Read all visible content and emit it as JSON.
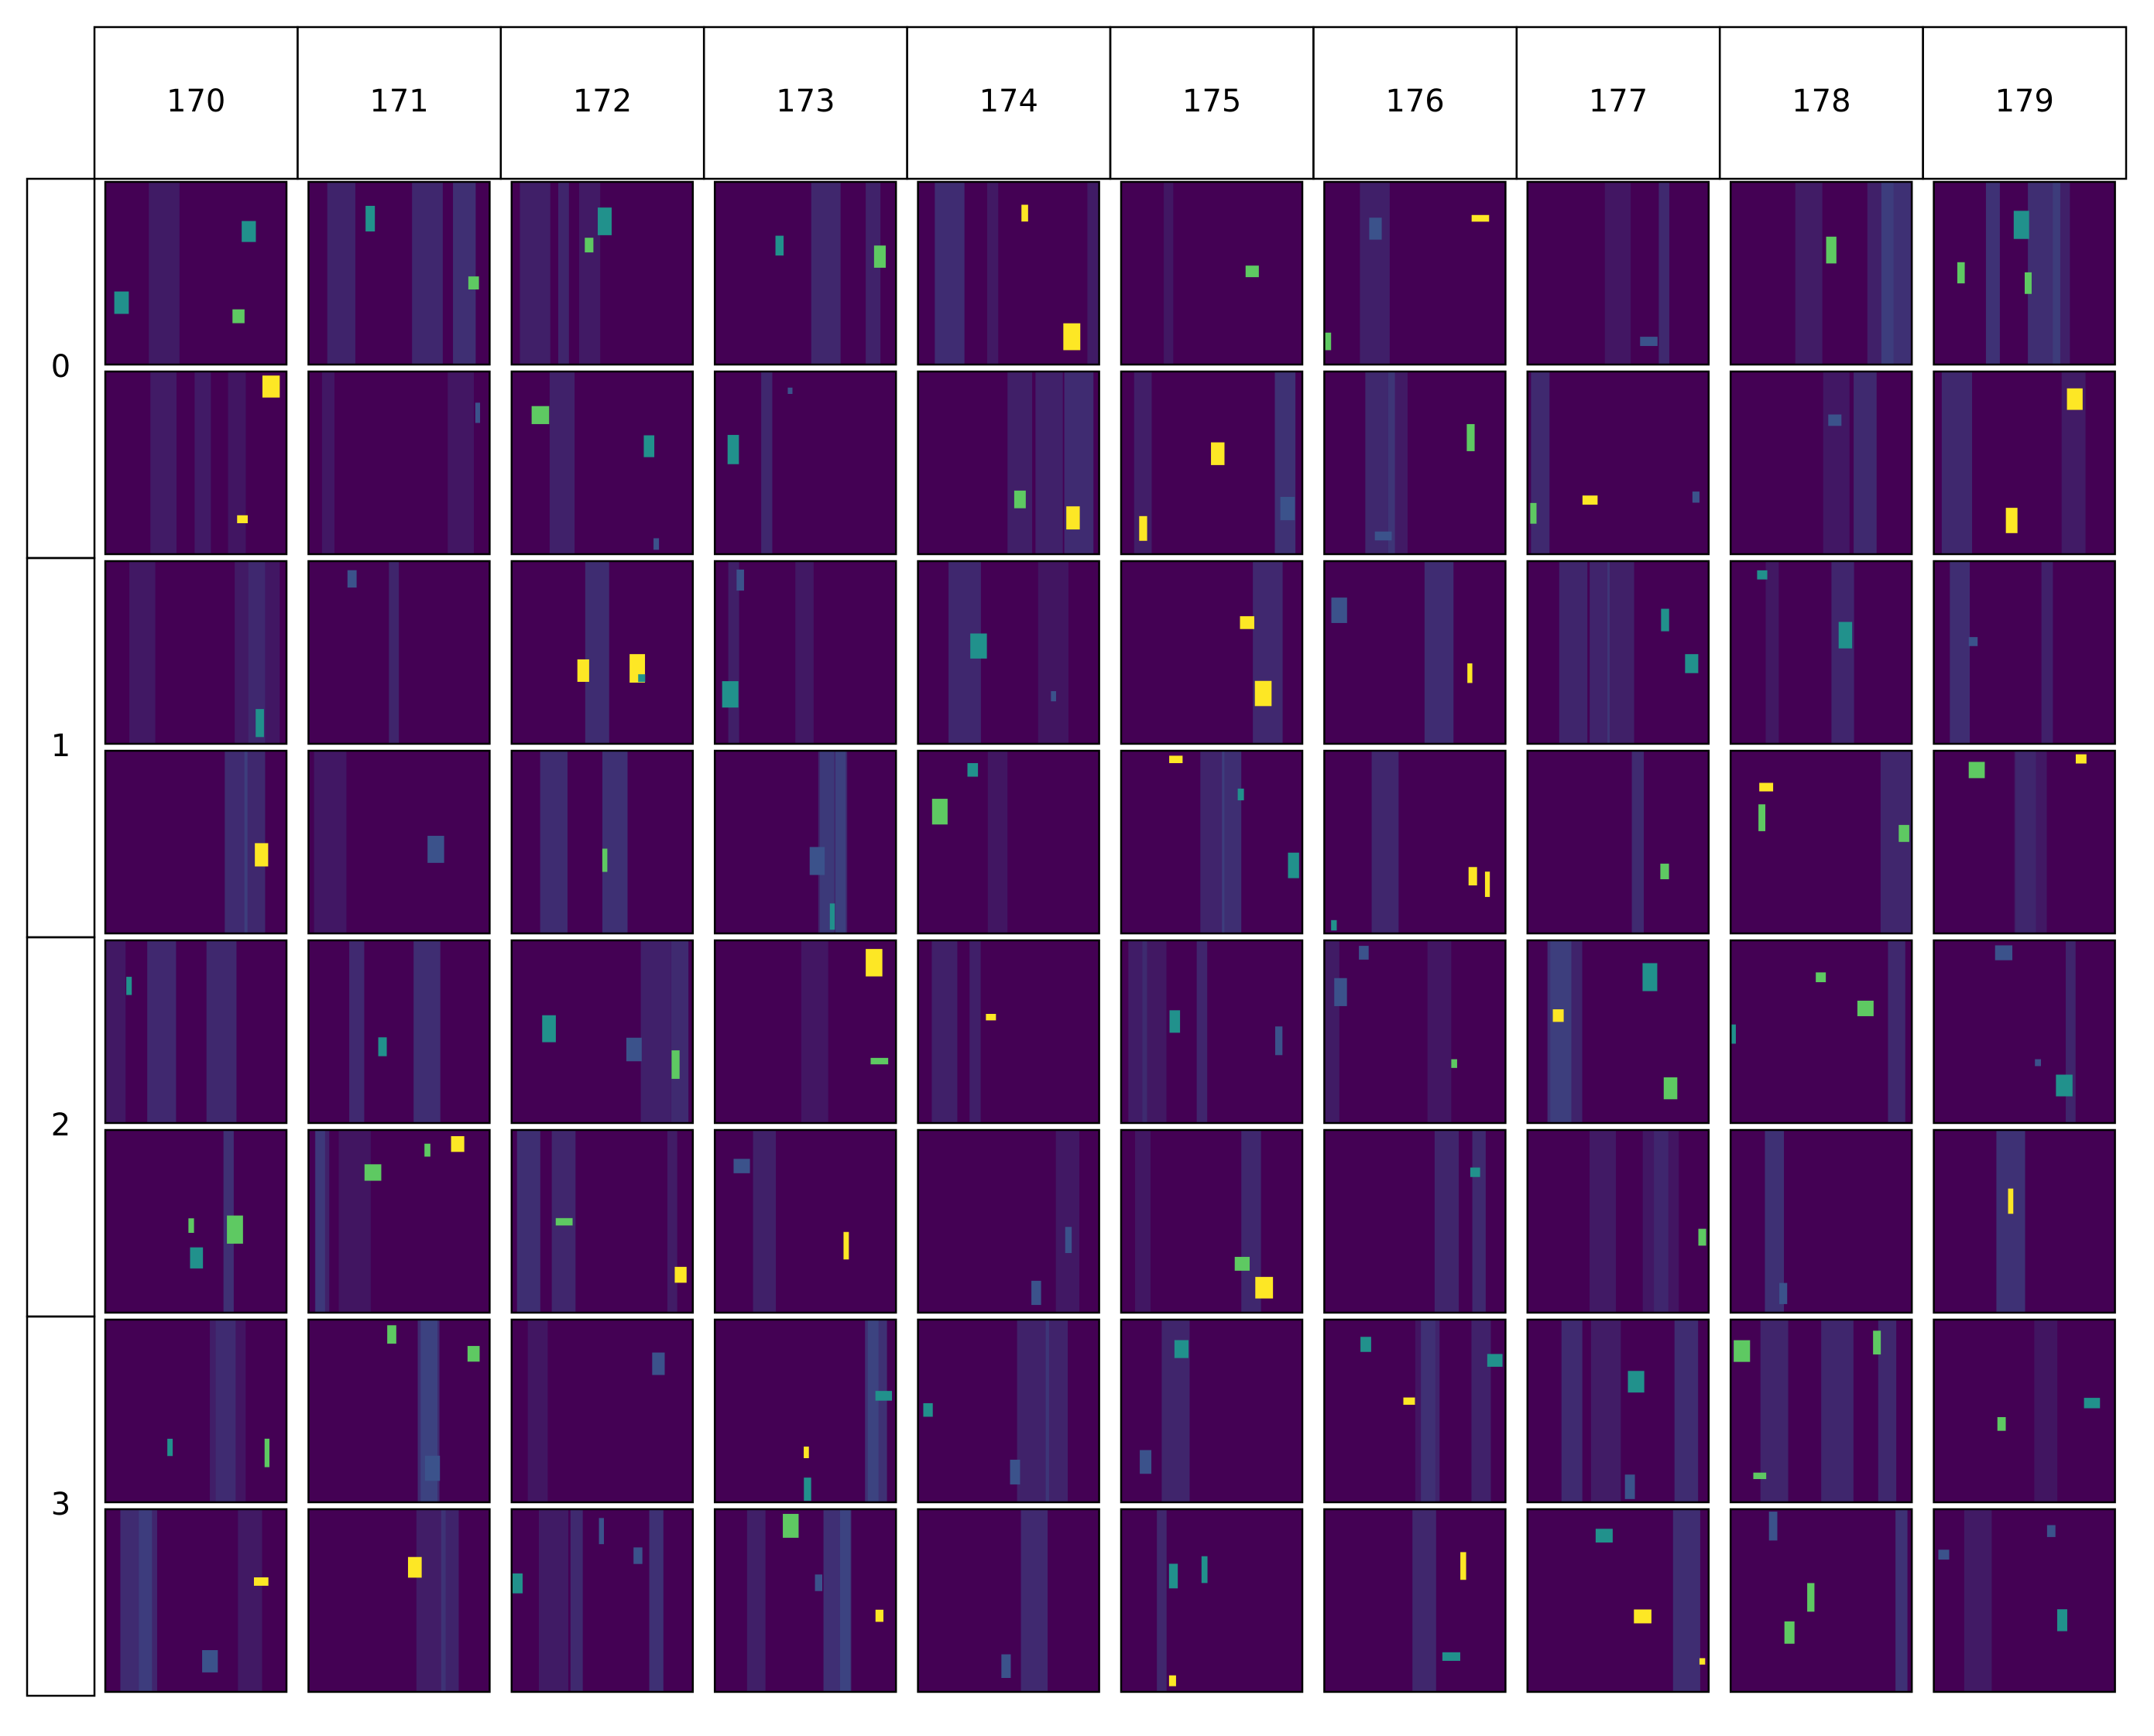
{
  "columns": [
    "170",
    "171",
    "172",
    "173",
    "174",
    "175",
    "176",
    "177",
    "178",
    "179"
  ],
  "rows": [
    "0",
    "1",
    "2",
    "3"
  ]
}
